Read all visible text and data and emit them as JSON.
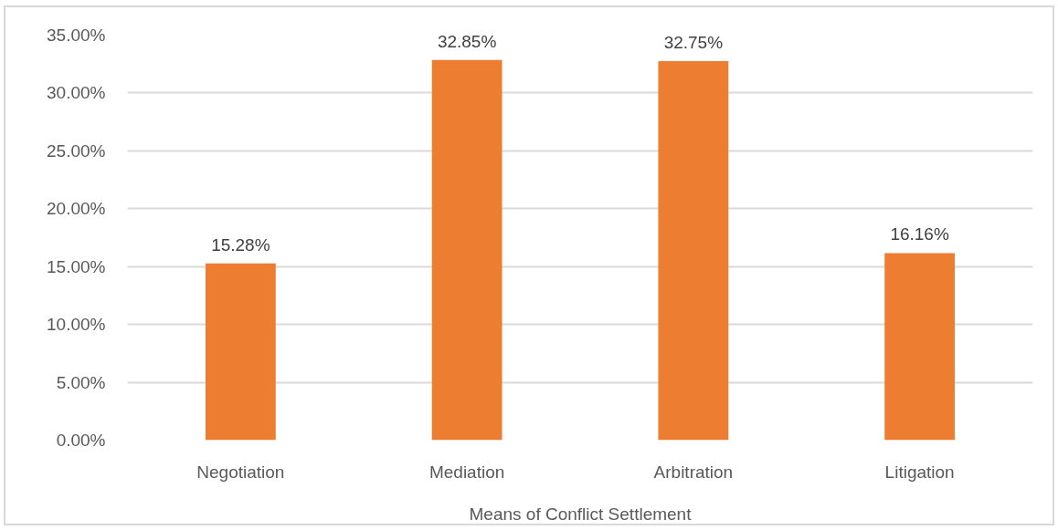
{
  "chart_data": {
    "type": "bar",
    "xlabel": "Means of Conflict Settlement",
    "categories": [
      "Negotiation",
      "Mediation",
      "Arbitration",
      "Litigation"
    ],
    "values": [
      15.28,
      32.85,
      32.75,
      16.16
    ],
    "value_labels": [
      "15.28%",
      "32.85%",
      "32.75%",
      "16.16%"
    ],
    "color": "#ed7d31",
    "ylim": [
      0,
      35
    ],
    "yticks": [
      {
        "value": 0,
        "label": "0.00%"
      },
      {
        "value": 5,
        "label": "5.00%"
      },
      {
        "value": 10,
        "label": "10.00%"
      },
      {
        "value": 15,
        "label": "15.00%"
      },
      {
        "value": 20,
        "label": "20.00%"
      },
      {
        "value": 25,
        "label": "25.00%"
      },
      {
        "value": 30,
        "label": "30.00%"
      },
      {
        "value": 35,
        "label": "35.00%"
      }
    ],
    "grid": "y"
  }
}
